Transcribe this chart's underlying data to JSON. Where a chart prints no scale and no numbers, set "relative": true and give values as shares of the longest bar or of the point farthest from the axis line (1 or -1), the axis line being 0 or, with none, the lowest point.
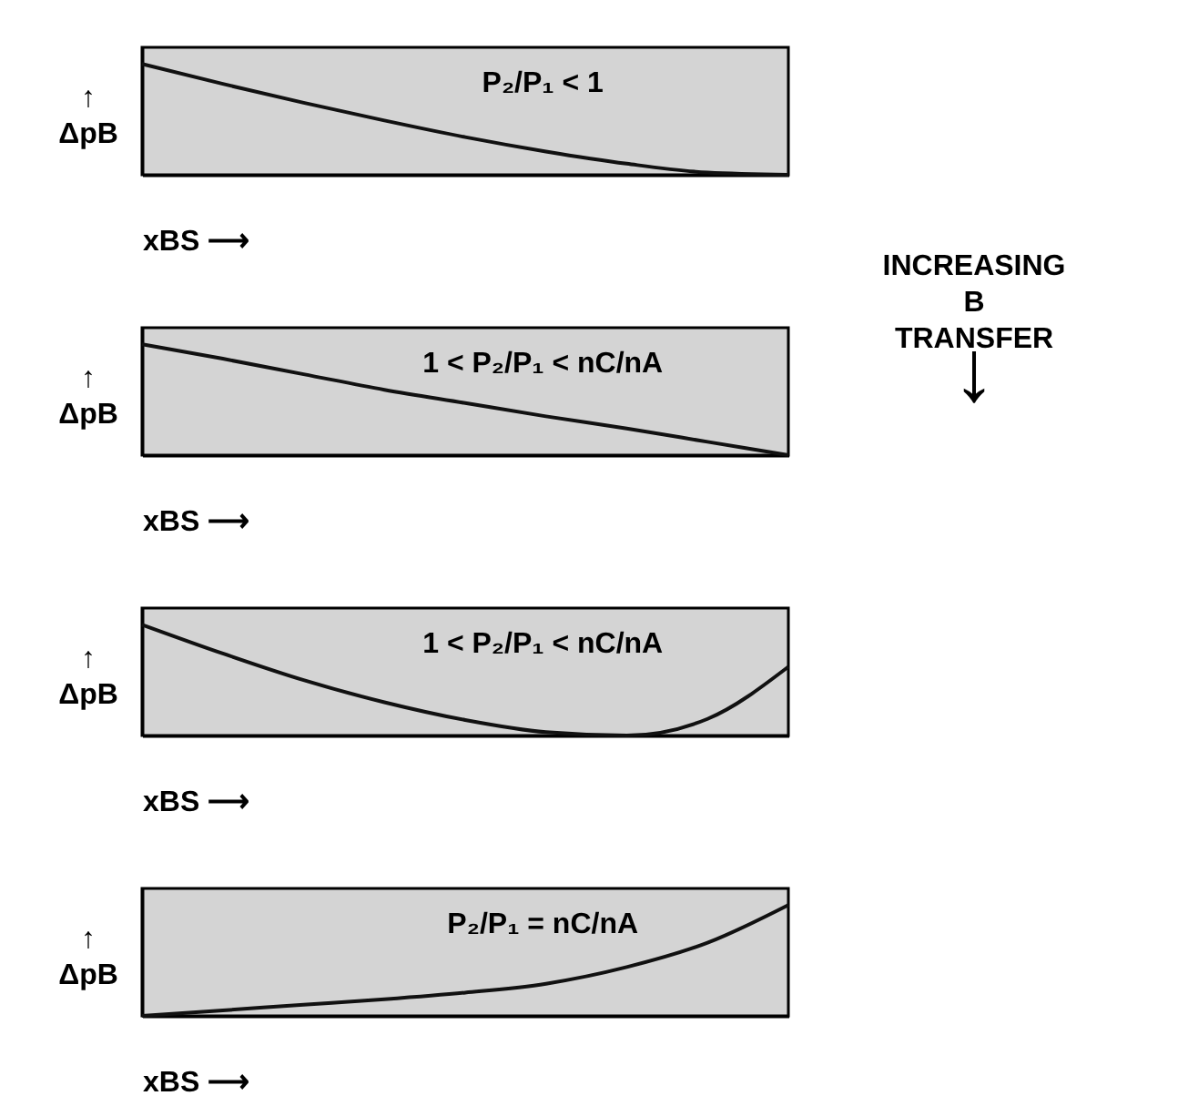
{
  "chart_data": [
    {
      "type": "line",
      "relative": true,
      "xlabel": "xBS ⟶",
      "ylabel": "↑ ΔpB",
      "annotations": [
        "P₂/P₁ < 1"
      ],
      "categories": [
        null,
        null,
        null,
        null,
        null,
        null,
        null,
        null,
        null
      ],
      "series": [
        {
          "color": "#111111",
          "values": [
            1,
            0.82,
            0.65,
            0.49,
            0.34,
            0.21,
            0.1,
            0.02,
            0
          ]
        }
      ]
    },
    {
      "type": "line",
      "relative": true,
      "xlabel": "xBS ⟶",
      "ylabel": "↑ ΔpB",
      "annotations": [
        "1 < P₂/P₁ < nC/nA"
      ],
      "categories": [
        null,
        null,
        null,
        null,
        null,
        null,
        null,
        null,
        null
      ],
      "series": [
        {
          "color": "#111111",
          "values": [
            1,
            0.87,
            0.73,
            0.59,
            0.47,
            0.35,
            0.24,
            0.12,
            0
          ]
        }
      ]
    },
    {
      "type": "line",
      "relative": true,
      "xlabel": "xBS ⟶",
      "ylabel": "↑ ΔpB",
      "annotations": [
        "1 < P₂/P₁ < nC/nA"
      ],
      "categories": [
        null,
        null,
        null,
        null,
        null,
        null,
        null,
        null,
        null
      ],
      "series": [
        {
          "color": "#111111",
          "values": [
            1,
            0.74,
            0.5,
            0.3,
            0.14,
            0.03,
            0,
            0.15,
            0.62
          ]
        }
      ]
    },
    {
      "type": "line",
      "relative": true,
      "xlabel": "xBS ⟶",
      "ylabel": "↑ ΔpB",
      "annotations": [
        "P₂/P₁ = nC/nA"
      ],
      "categories": [
        null,
        null,
        null,
        null,
        null,
        null,
        null,
        null,
        null
      ],
      "series": [
        {
          "color": "#111111",
          "values": [
            0,
            0.05,
            0.1,
            0.15,
            0.21,
            0.29,
            0.44,
            0.66,
            1
          ]
        }
      ]
    },
    {
      "type": "other",
      "annotations": [
        "INCREASING B TRANSFER",
        "↓"
      ]
    }
  ]
}
